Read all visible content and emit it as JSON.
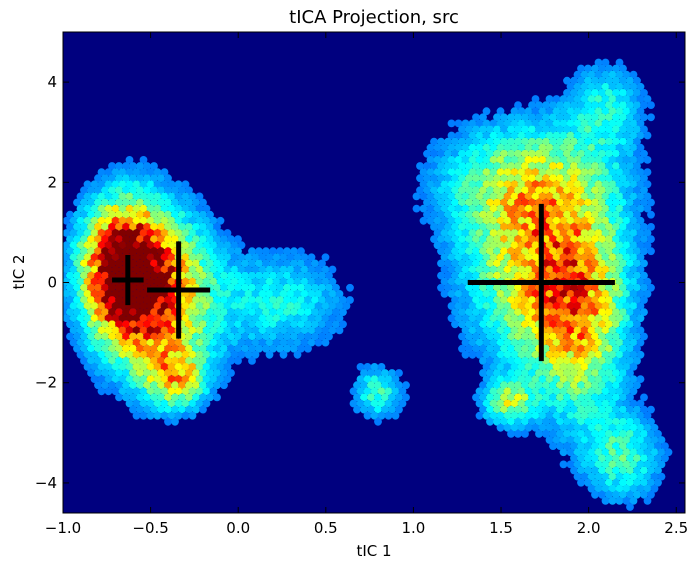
{
  "chart_data": {
    "type": "heatmap",
    "title": "tICA Projection, src",
    "xlabel": "tIC 1",
    "ylabel": "tIC 2",
    "xlim": [
      -1.0,
      2.55
    ],
    "ylim": [
      -4.6,
      5.0
    ],
    "x_ticks": [
      "−1.0",
      "−0.5",
      "0.0",
      "0.5",
      "1.0",
      "1.5",
      "2.0",
      "2.5"
    ],
    "y_ticks": [
      "−4",
      "−2",
      "0",
      "2",
      "4"
    ],
    "background_color": "#00007f",
    "colormap": "jet",
    "density_regions": [
      {
        "x": -0.65,
        "y": 0.25,
        "sx": 0.16,
        "sy": 0.9,
        "weight": 1.0
      },
      {
        "x": -0.45,
        "y": -0.3,
        "sx": 0.22,
        "sy": 1.1,
        "weight": 0.65
      },
      {
        "x": -0.35,
        "y": -1.9,
        "sx": 0.12,
        "sy": 0.4,
        "weight": 0.45
      },
      {
        "x": 0.25,
        "y": -0.4,
        "sx": 0.25,
        "sy": 0.7,
        "weight": 0.25
      },
      {
        "x": 0.8,
        "y": -2.2,
        "sx": 0.1,
        "sy": 0.35,
        "weight": 0.3
      },
      {
        "x": 1.72,
        "y": 0.3,
        "sx": 0.28,
        "sy": 1.3,
        "weight": 0.55
      },
      {
        "x": 1.95,
        "y": -0.8,
        "sx": 0.18,
        "sy": 1.4,
        "weight": 0.45
      },
      {
        "x": 1.65,
        "y": 2.0,
        "sx": 0.35,
        "sy": 0.8,
        "weight": 0.35
      },
      {
        "x": 1.55,
        "y": -2.4,
        "sx": 0.1,
        "sy": 0.3,
        "weight": 0.4
      },
      {
        "x": 2.2,
        "y": -3.5,
        "sx": 0.15,
        "sy": 0.6,
        "weight": 0.3
      },
      {
        "x": 2.1,
        "y": 3.5,
        "sx": 0.15,
        "sy": 0.6,
        "weight": 0.25
      }
    ],
    "centroids": [
      {
        "x": -0.63,
        "y": 0.05,
        "x_err": 0.09,
        "y_err": 0.5
      },
      {
        "x": -0.34,
        "y": -0.15,
        "x_err": 0.18,
        "y_err": 0.97
      },
      {
        "x": 1.73,
        "y": 0.0,
        "x_err": 0.42,
        "y_err": 1.57
      }
    ],
    "grid": false
  }
}
